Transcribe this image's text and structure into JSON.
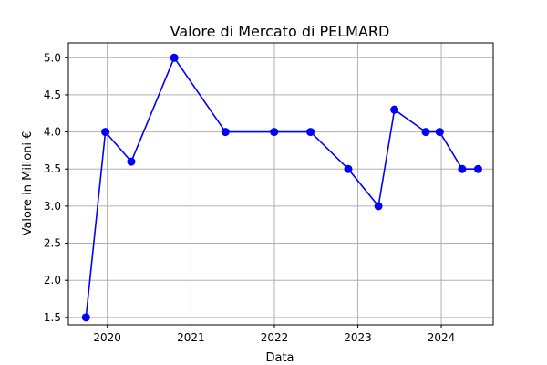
{
  "chart_data": {
    "type": "line",
    "title": "Valore di Mercato di PELMARD",
    "xlabel": "Data",
    "ylabel": "Valore in Milioni €",
    "x_tick_labels": [
      "2020",
      "2021",
      "2022",
      "2023",
      "2024"
    ],
    "y_tick_labels": [
      "1.5",
      "2.0",
      "2.5",
      "3.0",
      "3.5",
      "4.0",
      "4.5",
      "5.0"
    ],
    "ylim": [
      1.4,
      5.2
    ],
    "xlim": [
      "2019-07-15",
      "2024-08-15"
    ],
    "grid": true,
    "series": [
      {
        "color": "#0000ff",
        "marker": "circle",
        "x": [
          "2019-09-30",
          "2019-12-24",
          "2020-04-15",
          "2020-10-20",
          "2021-06-01",
          "2021-12-31",
          "2022-06-08",
          "2022-11-20",
          "2023-04-01",
          "2023-06-10",
          "2023-10-25",
          "2023-12-25",
          "2024-04-01",
          "2024-06-10"
        ],
        "y": [
          1.5,
          4.0,
          3.6,
          5.0,
          4.0,
          4.0,
          4.0,
          3.5,
          3.0,
          4.3,
          4.0,
          4.0,
          3.5,
          3.5
        ]
      }
    ]
  }
}
